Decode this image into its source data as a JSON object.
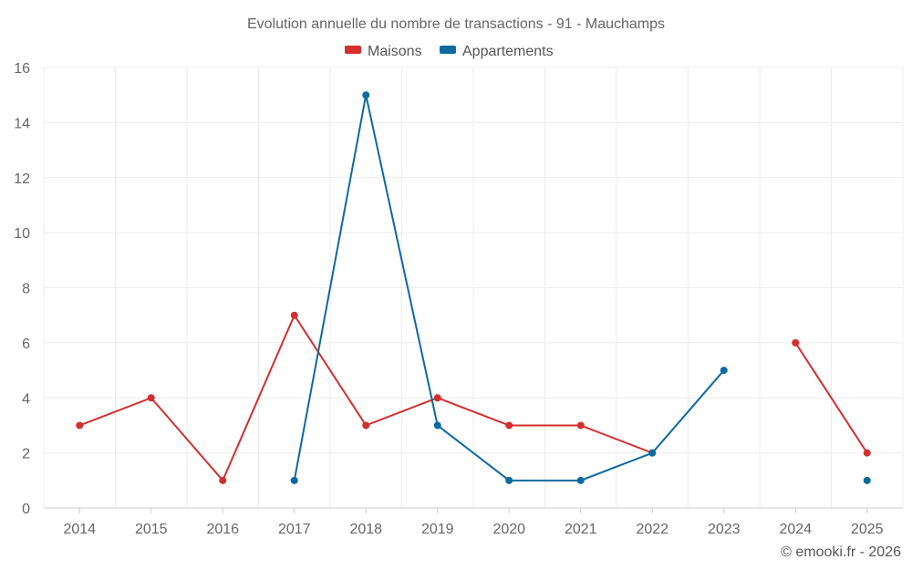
{
  "chart_data": {
    "type": "line",
    "title": "Evolution annuelle du nombre de transactions - 91 - Mauchamps",
    "categories": [
      "2014",
      "2015",
      "2016",
      "2017",
      "2018",
      "2019",
      "2020",
      "2021",
      "2022",
      "2023",
      "2024",
      "2025"
    ],
    "ylim": [
      0,
      16
    ],
    "yticks": [
      0,
      2,
      4,
      6,
      8,
      10,
      12,
      14,
      16
    ],
    "grid": true,
    "legend_position": "top-center",
    "series": [
      {
        "name": "Maisons",
        "color": "#d32f2f",
        "values": [
          3,
          4,
          1,
          7,
          3,
          4,
          3,
          3,
          2,
          null,
          6,
          2
        ]
      },
      {
        "name": "Appartements",
        "color": "#0d6aa0",
        "values": [
          null,
          null,
          null,
          1,
          15,
          3,
          1,
          1,
          2,
          5,
          null,
          1
        ]
      }
    ],
    "credit": "© emooki.fr - 2026"
  }
}
